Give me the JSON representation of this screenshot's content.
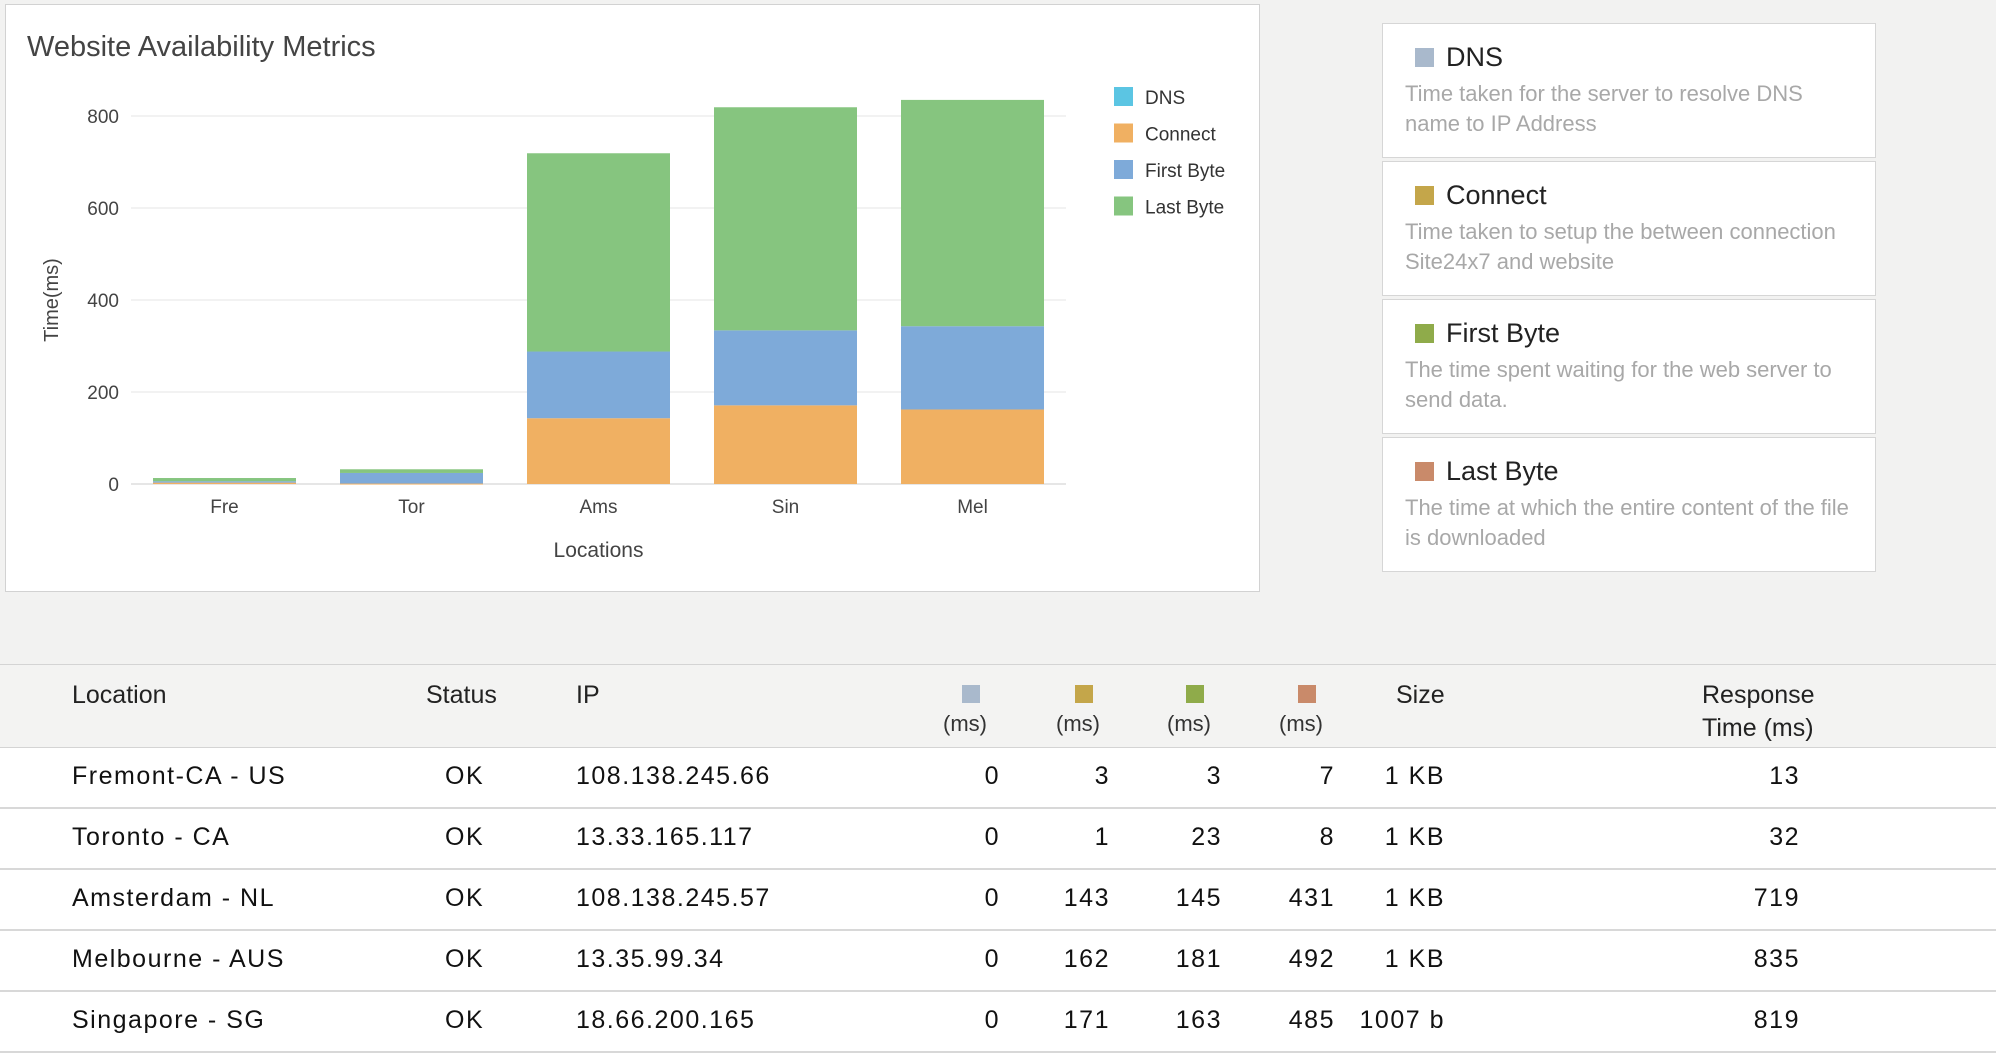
{
  "chart_card": {
    "title": "Website Availability Metrics"
  },
  "chart_data": {
    "type": "bar",
    "stacked": true,
    "title": "Website Availability Metrics",
    "xlabel": "Locations",
    "ylabel": "Time(ms)",
    "categories": [
      "Fre",
      "Tor",
      "Ams",
      "Sin",
      "Mel"
    ],
    "ylim": [
      0,
      880
    ],
    "yticks": [
      0,
      200,
      400,
      600,
      800
    ],
    "series": [
      {
        "name": "DNS",
        "color": "#5bc5e3",
        "values": [
          0,
          0,
          0,
          0,
          0
        ]
      },
      {
        "name": "Connect",
        "color": "#f0b062",
        "values": [
          3,
          1,
          143,
          171,
          162
        ]
      },
      {
        "name": "First Byte",
        "color": "#7eaad9",
        "values": [
          3,
          23,
          145,
          163,
          181
        ]
      },
      {
        "name": "Last Byte",
        "color": "#86c57f",
        "values": [
          7,
          8,
          431,
          485,
          492
        ]
      }
    ],
    "legend_position": "top-right",
    "grid": true
  },
  "legend_panel": {
    "items": [
      {
        "name": "DNS",
        "color": "#a9b9cc",
        "description": "Time taken for the server to resolve DNS name to IP Address"
      },
      {
        "name": "Connect",
        "color": "#c4a64a",
        "description": "Time taken to setup the between connection Site24x7 and website"
      },
      {
        "name": "First Byte",
        "color": "#8fab4a",
        "description": "The time spent waiting for the web server to send data."
      },
      {
        "name": "Last Byte",
        "color": "#c98a6a",
        "description": "The time at which the entire content of the file is downloaded"
      }
    ]
  },
  "table": {
    "headers": {
      "location": "Location",
      "status": "Status",
      "ip": "IP",
      "ms_unit": "(ms)",
      "size": "Size",
      "response_line1": "Response",
      "response_line2": "Time (ms)"
    },
    "metric_colors": [
      "#a9b9cc",
      "#c4a64a",
      "#8fab4a",
      "#c98a6a"
    ],
    "rows": [
      {
        "location": "Fremont-CA - US",
        "status": "OK",
        "ip": "108.138.245.66",
        "dns": "0",
        "connect": "3",
        "first_byte": "3",
        "last_byte": "7",
        "size": "1 KB",
        "response": "13"
      },
      {
        "location": "Toronto - CA",
        "status": "OK",
        "ip": "13.33.165.117",
        "dns": "0",
        "connect": "1",
        "first_byte": "23",
        "last_byte": "8",
        "size": "1 KB",
        "response": "32"
      },
      {
        "location": "Amsterdam - NL",
        "status": "OK",
        "ip": "108.138.245.57",
        "dns": "0",
        "connect": "143",
        "first_byte": "145",
        "last_byte": "431",
        "size": "1 KB",
        "response": "719"
      },
      {
        "location": "Melbourne - AUS",
        "status": "OK",
        "ip": "13.35.99.34",
        "dns": "0",
        "connect": "162",
        "first_byte": "181",
        "last_byte": "492",
        "size": "1 KB",
        "response": "835"
      },
      {
        "location": "Singapore - SG",
        "status": "OK",
        "ip": "18.66.200.165",
        "dns": "0",
        "connect": "171",
        "first_byte": "163",
        "last_byte": "485",
        "size": "1007 b",
        "response": "819"
      }
    ]
  }
}
